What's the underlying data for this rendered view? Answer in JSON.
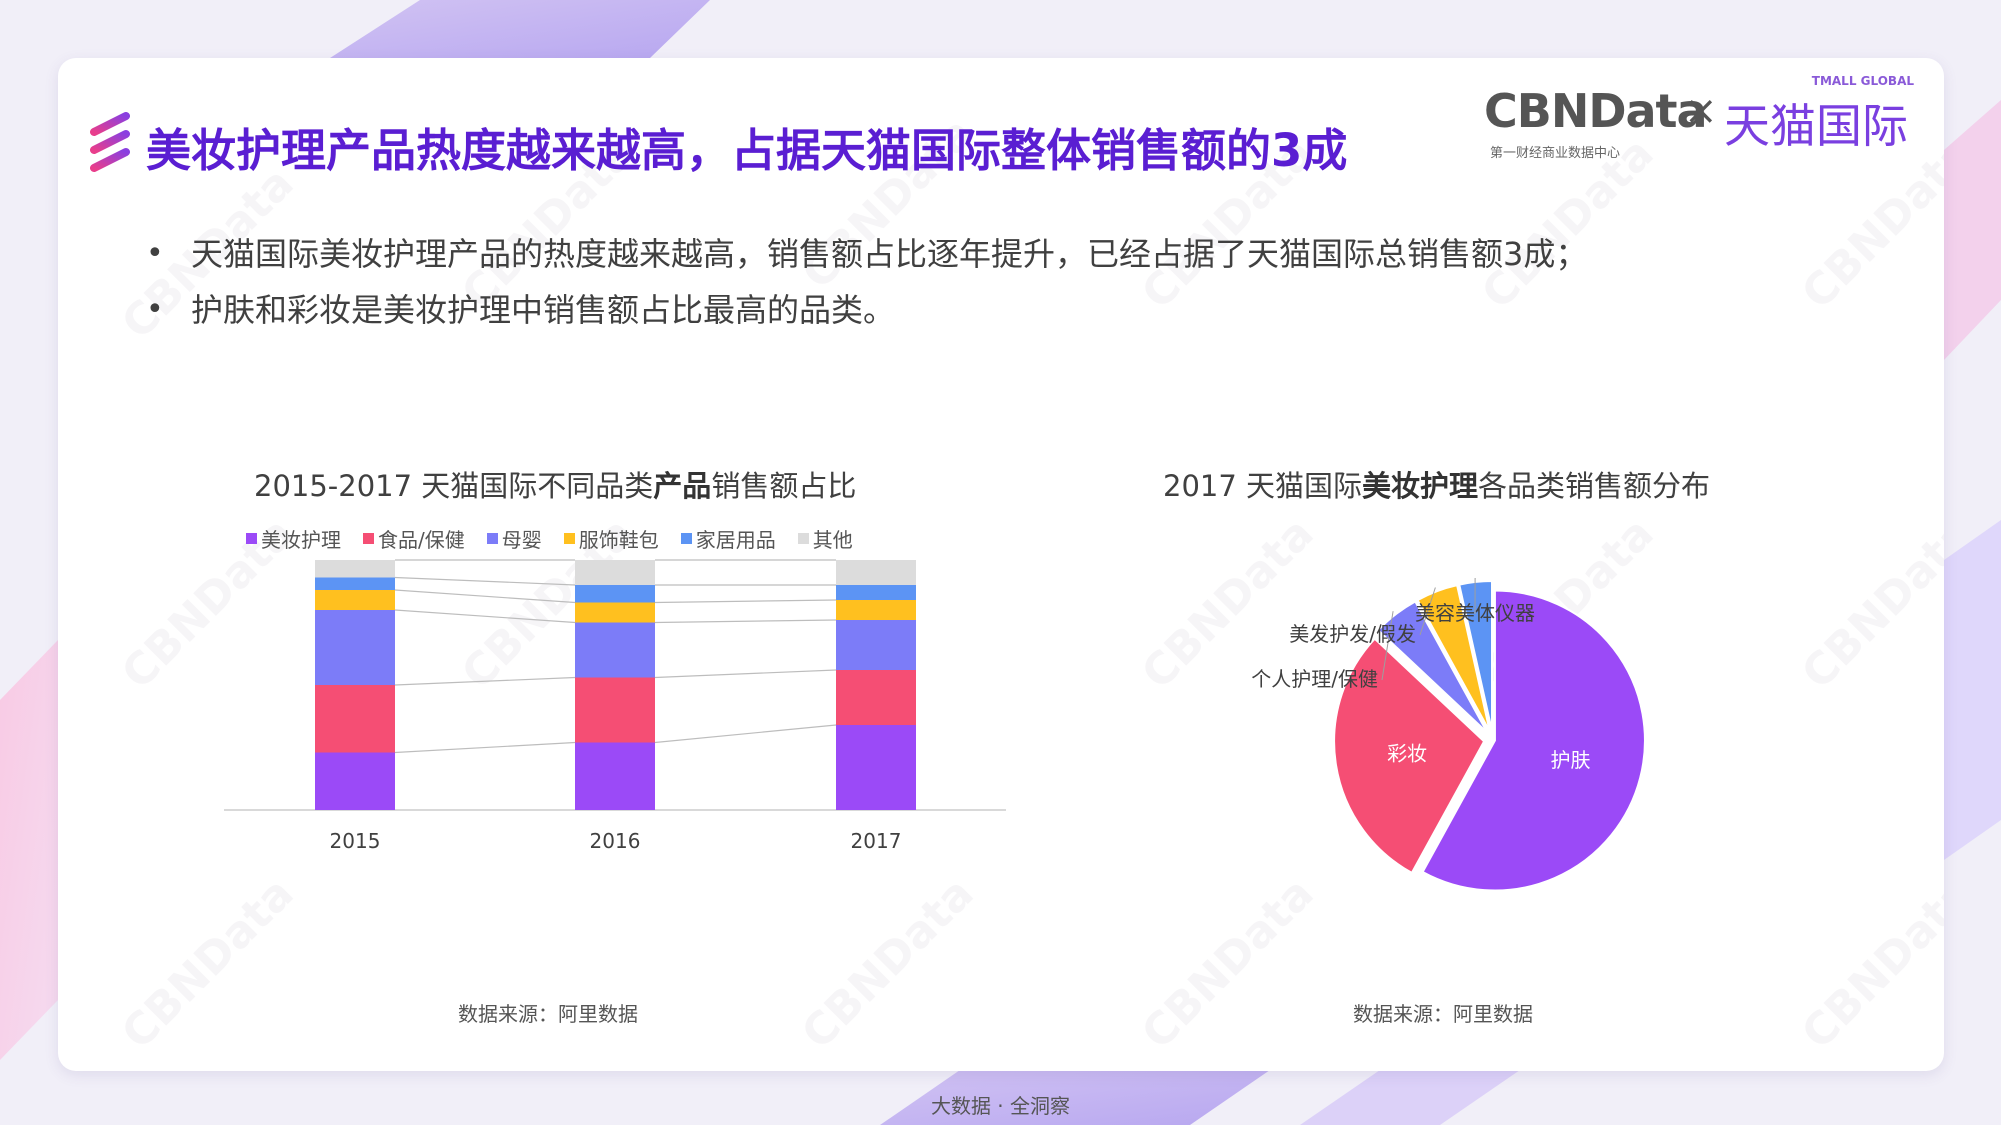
{
  "header": {
    "title": "美妆护理产品热度越来越高，占据天猫国际整体销售额的3成",
    "brand_primary": "CBNData",
    "brand_primary_sub": "第一财经商业数据中心",
    "brand_separator": "×",
    "brand_secondary": "天猫国际",
    "brand_secondary_sub": "TMALL GLOBAL"
  },
  "watermark_text": "CBNData",
  "bullets": [
    "天猫国际美妆护理产品的热度越来越高，销售额占比逐年提升，已经占据了天猫国际总销售额3成；",
    "护肤和彩妆是美妆护理中销售额占比最高的品类。"
  ],
  "left_chart": {
    "title_prefix": "2015-2017 天猫国际不同品类",
    "title_bold": "产品",
    "title_suffix": "销售额占比",
    "source": "数据来源：阿里数据"
  },
  "right_chart": {
    "title_prefix": "2017 天猫国际",
    "title_bold": "美妆护理",
    "title_suffix": "各品类销售额分布",
    "source": "数据来源：阿里数据"
  },
  "footer": "大数据 · 全洞察",
  "colors": {
    "title": "#5a1ed2",
    "icon_gradient": [
      "#e83e8c",
      "#8a3fe0"
    ]
  },
  "chart_data": [
    {
      "type": "bar",
      "stacked": true,
      "percent_stacked": true,
      "categories": [
        "2015",
        "2016",
        "2017"
      ],
      "series": [
        {
          "name": "美妆护理",
          "color": "#9b4af7",
          "values": [
            23,
            27,
            34
          ]
        },
        {
          "name": "食品/保健",
          "color": "#f54e74",
          "values": [
            27,
            26,
            22
          ]
        },
        {
          "name": "母婴",
          "color": "#7c7cf8",
          "values": [
            30,
            22,
            20
          ]
        },
        {
          "name": "服饰鞋包",
          "color": "#ffc01f",
          "values": [
            8,
            8,
            8
          ]
        },
        {
          "name": "家居用品",
          "color": "#5c94f4",
          "values": [
            5,
            7,
            6
          ]
        },
        {
          "name": "其他",
          "color": "#dcdcdc",
          "values": [
            7,
            10,
            10
          ]
        }
      ],
      "connector_lines": true,
      "ylim": [
        0,
        100
      ],
      "legend_position": "top"
    },
    {
      "type": "pie",
      "slices": [
        {
          "label": "护肤",
          "value": 58,
          "color": "#9b4af7",
          "label_inside": true
        },
        {
          "label": "彩妆",
          "value": 29,
          "color": "#f54e74",
          "label_inside": true
        },
        {
          "label": "个人护理/保健",
          "value": 5,
          "color": "#7c7cf8",
          "label_inside": false
        },
        {
          "label": "美发护发/假发",
          "value": 4.5,
          "color": "#ffc01f",
          "label_inside": false
        },
        {
          "label": "美容美体仪器",
          "value": 3.5,
          "color": "#5c94f4",
          "label_inside": false
        }
      ]
    }
  ]
}
